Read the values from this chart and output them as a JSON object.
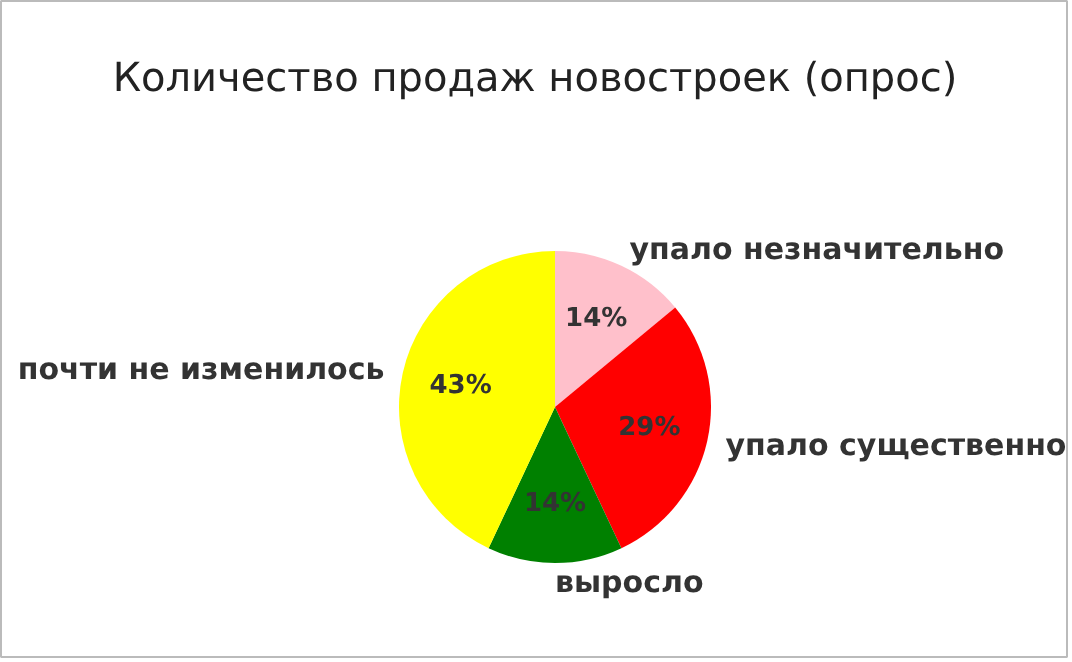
{
  "chart_data": {
    "type": "pie",
    "title": "Количество продаж новостроек (опрос)",
    "categories": [
      "упало незначительно",
      "упало существенно",
      "выросло",
      "почти не изменилось"
    ],
    "values": [
      14,
      29,
      14,
      43
    ],
    "colors": [
      "#ffc0cb",
      "#ff0000",
      "#008000",
      "#ffff00"
    ],
    "value_labels": [
      "14%",
      "29%",
      "14%",
      "43%"
    ]
  }
}
